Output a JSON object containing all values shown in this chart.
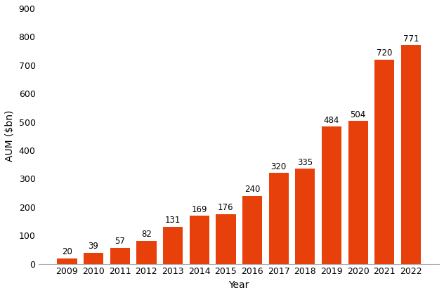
{
  "categories": [
    "2009",
    "2010",
    "2011",
    "2012",
    "2013",
    "2014",
    "2015",
    "2016",
    "2017",
    "2018",
    "2019",
    "2020",
    "2021",
    "2022"
  ],
  "values": [
    20,
    39,
    57,
    82,
    131,
    169,
    176,
    240,
    320,
    335,
    484,
    504,
    720,
    771
  ],
  "bar_color": "#E8400A",
  "xlabel": "Year",
  "ylabel": "AUM ($bn)",
  "ylim": [
    0,
    900
  ],
  "yticks": [
    0,
    100,
    200,
    300,
    400,
    500,
    600,
    700,
    800,
    900
  ],
  "background_color": "#ffffff",
  "label_fontsize": 8.5,
  "axis_label_fontsize": 10,
  "tick_fontsize": 9,
  "bar_width": 0.75
}
